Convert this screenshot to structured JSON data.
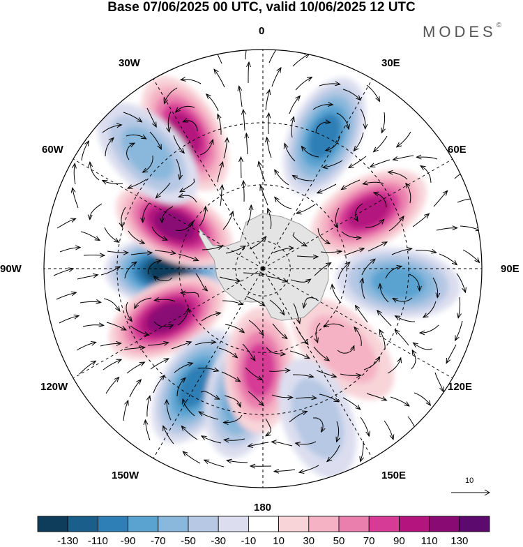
{
  "title": "Base 07/06/2025 00 UTC, valid 10/06/2025 12 UTC",
  "brand": "MODES",
  "brand_mark": "©",
  "longitude_labels": {
    "top": "0",
    "e30": "30E",
    "e60": "60E",
    "e90": "90E",
    "e120": "120E",
    "e150": "150E",
    "bottom": "180",
    "w150": "150W",
    "w120": "120W",
    "w90": "90W",
    "w60": "60W",
    "w30": "30W"
  },
  "vector_scale_label": "10",
  "colorbar": {
    "labels": [
      "-130",
      "-110",
      "-90",
      "-70",
      "-50",
      "-30",
      "-10",
      "10",
      "30",
      "50",
      "70",
      "90",
      "110",
      "130"
    ],
    "colors": [
      "#0e3d5c",
      "#1a5f8c",
      "#2d7fb5",
      "#5aa3d1",
      "#8ab8dc",
      "#b6c8e4",
      "#dcdeef",
      "#ffffff",
      "#f8d4d8",
      "#f5b2c4",
      "#ea7fae",
      "#d63b96",
      "#b3147e",
      "#8a0a74",
      "#5c0a6e"
    ]
  },
  "map": {
    "land_color": "#e4e4e4",
    "anomalies": [
      {
        "value": -130,
        "lon": -91,
        "lat": -56
      },
      {
        "value": 110,
        "lon": -117,
        "lat": -52
      },
      {
        "value": 110,
        "lon": -64,
        "lat": -55
      },
      {
        "value": -90,
        "lon": -150,
        "lat": -43
      },
      {
        "value": -70,
        "lon": -170,
        "lat": -45
      },
      {
        "value": 70,
        "lon": -178,
        "lat": -54
      },
      {
        "value": 90,
        "lon": -30,
        "lat": -37
      },
      {
        "value": -90,
        "lon": 25,
        "lat": -40
      },
      {
        "value": 90,
        "lon": 62,
        "lat": -48
      },
      {
        "value": -70,
        "lon": 96,
        "lat": -43
      },
      {
        "value": -50,
        "lon": -45,
        "lat": -35
      },
      {
        "value": 30,
        "lon": 135,
        "lat": -50
      },
      {
        "value": -30,
        "lon": 160,
        "lat": -36
      }
    ]
  }
}
